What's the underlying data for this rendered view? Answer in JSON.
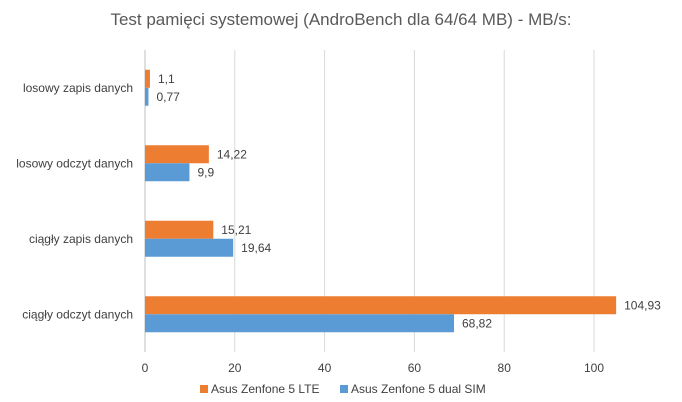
{
  "chart_data": {
    "type": "bar",
    "orientation": "horizontal",
    "title": "Test pamięci systemowej (AndroBench dla 64/64 MB) - MB/s:",
    "categories": [
      "losowy zapis danych",
      "losowy odczyt danych",
      "ciągły zapis danych",
      "ciągły odczyt danych"
    ],
    "series": [
      {
        "name": "Asus Zenfone 5 LTE",
        "color": "#ED7D31",
        "values": [
          1.1,
          14.22,
          15.21,
          104.93
        ],
        "labels": [
          "1,1",
          "14,22",
          "15,21",
          "104,93"
        ]
      },
      {
        "name": "Asus Zenfone 5 dual SIM",
        "color": "#5B9BD5",
        "values": [
          0.77,
          9.9,
          19.64,
          68.82
        ],
        "labels": [
          "0,77",
          "9,9",
          "19,64",
          "68,82"
        ]
      }
    ],
    "xticks": [
      0,
      20,
      40,
      60,
      80,
      100
    ],
    "xlim": [
      0,
      110
    ],
    "grid": true,
    "legend": "bottom",
    "xlabel": "",
    "ylabel": ""
  }
}
